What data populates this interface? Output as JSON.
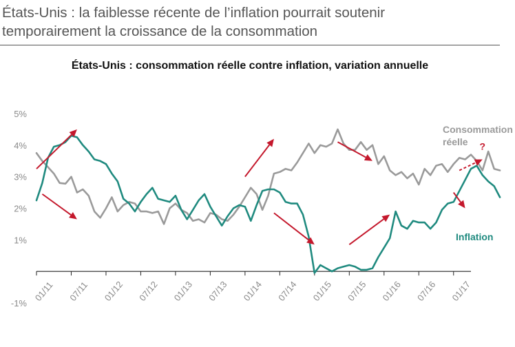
{
  "header": {
    "title_line1": "États-Unis : la faiblesse récente de l’inflation pourrait soutenir",
    "title_line2": "temporairement la croissance de la consommation"
  },
  "colors": {
    "consumption": "#9a9a9a",
    "inflation": "#1f8a7f",
    "arrow": "#c4182c",
    "axis": "#222222",
    "tick_text": "#8a8a8a"
  },
  "chart_data": {
    "type": "line",
    "title": "États-Unis : consommation réelle contre inflation, variation annuelle",
    "ylim": [
      -1,
      5
    ],
    "yticks": [
      -1,
      1,
      2,
      3,
      4,
      5
    ],
    "ytick_labels": [
      "-1%",
      "1%",
      "2%",
      "3%",
      "4%",
      "5%"
    ],
    "x_start": "2011-01",
    "x_end": "2017-04",
    "xticks": [
      "2011-01",
      "2011-07",
      "2012-01",
      "2012-07",
      "2013-01",
      "2013-07",
      "2014-01",
      "2014-07",
      "2015-01",
      "2015-07",
      "2016-01",
      "2016-07",
      "2017-01"
    ],
    "xtick_labels": [
      "01/11",
      "07/11",
      "01/12",
      "07/12",
      "01/13",
      "07/13",
      "01/14",
      "07/14",
      "01/15",
      "07/15",
      "01/16",
      "07/16",
      "01/17"
    ],
    "series": [
      {
        "name": "Consommation réelle",
        "label_lines": [
          "Consommation",
          "réelle"
        ],
        "color": "#9a9a9a",
        "values": [
          3.75,
          3.5,
          3.3,
          3.1,
          2.8,
          2.78,
          3.0,
          2.5,
          2.6,
          2.4,
          1.9,
          1.7,
          2.0,
          2.35,
          1.9,
          2.1,
          2.2,
          2.15,
          1.9,
          1.9,
          1.85,
          1.9,
          1.5,
          2.0,
          2.15,
          1.95,
          1.85,
          1.6,
          1.65,
          1.55,
          1.85,
          1.8,
          1.65,
          1.6,
          1.8,
          2.05,
          2.35,
          2.65,
          2.45,
          1.95,
          2.4,
          3.1,
          3.15,
          3.25,
          3.2,
          3.45,
          3.75,
          4.05,
          3.75,
          4.0,
          3.95,
          4.05,
          4.5,
          4.05,
          3.85,
          3.85,
          4.1,
          3.85,
          4.0,
          3.4,
          3.65,
          3.2,
          3.05,
          3.15,
          2.95,
          3.1,
          2.75,
          3.25,
          3.05,
          3.35,
          3.4,
          3.15,
          3.4,
          3.6,
          3.55,
          3.7,
          3.5,
          3.2,
          3.8,
          3.25,
          3.2
        ]
      },
      {
        "name": "Inflation",
        "label_lines": [
          "Inflation"
        ],
        "color": "#1f8a7f",
        "values": [
          2.25,
          2.8,
          3.6,
          3.95,
          4.0,
          4.1,
          4.3,
          4.25,
          4.0,
          3.8,
          3.55,
          3.5,
          3.4,
          3.1,
          2.85,
          2.3,
          2.15,
          1.9,
          2.2,
          2.45,
          2.65,
          2.3,
          2.25,
          2.2,
          2.4,
          1.95,
          1.65,
          1.95,
          2.25,
          2.45,
          2.05,
          1.75,
          1.45,
          1.75,
          2.0,
          2.1,
          2.05,
          1.6,
          2.1,
          2.55,
          2.6,
          2.6,
          2.5,
          2.2,
          2.15,
          2.15,
          1.8,
          1.1,
          -0.05,
          0.2,
          0.1,
          0.0,
          0.1,
          0.15,
          0.2,
          0.15,
          0.05,
          0.05,
          0.1,
          0.45,
          0.75,
          1.05,
          1.9,
          1.45,
          1.35,
          1.6,
          1.55,
          1.55,
          1.35,
          1.55,
          1.95,
          2.15,
          2.2,
          2.55,
          2.9,
          3.25,
          3.35,
          3.05,
          2.85,
          2.7,
          2.35
        ]
      }
    ],
    "annotations": [
      {
        "type": "arrow",
        "from": [
          "2011-01",
          3.25
        ],
        "to": [
          "2011-08",
          4.5
        ]
      },
      {
        "type": "arrow",
        "from": [
          "2011-02",
          2.45
        ],
        "to": [
          "2011-08",
          1.65
        ]
      },
      {
        "type": "arrow",
        "from": [
          "2014-01",
          3.0
        ],
        "to": [
          "2014-06",
          4.2
        ]
      },
      {
        "type": "arrow",
        "from": [
          "2014-06",
          1.85
        ],
        "to": [
          "2015-01",
          0.85
        ]
      },
      {
        "type": "arrow",
        "from": [
          "2015-05",
          4.1
        ],
        "to": [
          "2015-11",
          3.5
        ]
      },
      {
        "type": "arrow",
        "from": [
          "2015-07",
          0.85
        ],
        "to": [
          "2016-02",
          1.8
        ]
      },
      {
        "type": "arrow",
        "from": [
          "2017-01",
          2.5
        ],
        "to": [
          "2017-03",
          2.0
        ]
      },
      {
        "type": "arrow",
        "dashed": true,
        "from": [
          "2017-02",
          3.2
        ],
        "to": [
          "2017-06",
          3.55
        ]
      },
      {
        "type": "text",
        "text": "?",
        "at": [
          "2017-06",
          3.85
        ]
      }
    ]
  }
}
